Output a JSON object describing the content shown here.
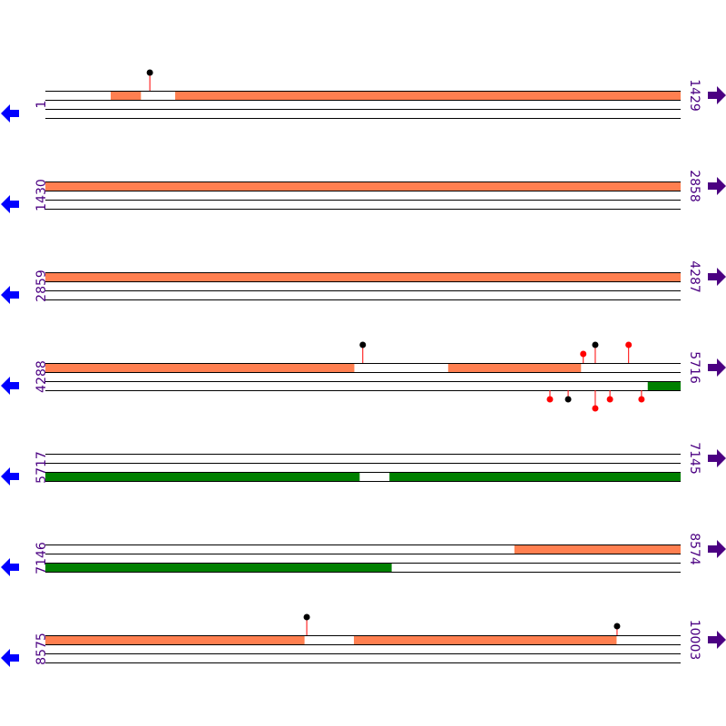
{
  "colors": {
    "forward_feature": "#ff7f50",
    "reverse_feature": "#008000",
    "track_line": "#000000",
    "label": "#4b0082",
    "left_arrow": "#0000ff",
    "right_arrow": "#4b0082",
    "stem": "#ff0000",
    "marker_red": "#ff0000",
    "marker_black": "#000000"
  },
  "icons": {
    "left": "arrow-left-icon",
    "right": "arrow-right-icon"
  },
  "rows": [
    {
      "start": "1",
      "end": "1429",
      "top_features": [
        [
          148,
          215
        ],
        [
          293,
          1429
        ]
      ],
      "bottom_features": [],
      "top_markers": [
        {
          "pos": 236,
          "color": "black",
          "level": 2
        }
      ],
      "bottom_markers": []
    },
    {
      "start": "1430",
      "end": "2858",
      "top_features": [
        [
          1430,
          2858
        ]
      ],
      "bottom_features": [],
      "top_markers": [],
      "bottom_markers": []
    },
    {
      "start": "2859",
      "end": "4287",
      "top_features": [
        [
          2859,
          4287
        ]
      ],
      "bottom_features": [],
      "top_markers": [],
      "bottom_markers": []
    },
    {
      "start": "4288",
      "end": "5716",
      "top_features": [
        [
          4288,
          4982
        ],
        [
          5194,
          5492
        ]
      ],
      "bottom_features": [
        [
          5643,
          5716
        ]
      ],
      "top_markers": [
        {
          "pos": 5002,
          "color": "black",
          "level": 2
        },
        {
          "pos": 5498,
          "color": "red",
          "level": 1
        },
        {
          "pos": 5525,
          "color": "black",
          "level": 2
        },
        {
          "pos": 5600,
          "color": "red",
          "level": 2
        }
      ],
      "bottom_markers": [
        {
          "pos": 5423,
          "color": "red",
          "level": 1
        },
        {
          "pos": 5464,
          "color": "black",
          "level": 1
        },
        {
          "pos": 5525,
          "color": "red",
          "level": 2
        },
        {
          "pos": 5558,
          "color": "red",
          "level": 1
        },
        {
          "pos": 5629,
          "color": "red",
          "level": 1
        }
      ]
    },
    {
      "start": "5717",
      "end": "7145",
      "top_features": [],
      "bottom_features": [
        [
          5717,
          6423
        ],
        [
          6491,
          7145
        ]
      ],
      "top_markers": [],
      "bottom_markers": []
    },
    {
      "start": "7146",
      "end": "8574",
      "top_features": [
        [
          8201,
          8574
        ]
      ],
      "bottom_features": [
        [
          7146,
          7924
        ]
      ],
      "top_markers": [],
      "bottom_markers": []
    },
    {
      "start": "8575",
      "end": "10003",
      "top_features": [
        [
          8575,
          9157
        ],
        [
          9269,
          9859
        ]
      ],
      "bottom_features": [],
      "top_markers": [
        {
          "pos": 9163,
          "color": "black",
          "level": 2
        },
        {
          "pos": 9861,
          "color": "black",
          "level": 1
        }
      ],
      "bottom_markers": []
    }
  ]
}
